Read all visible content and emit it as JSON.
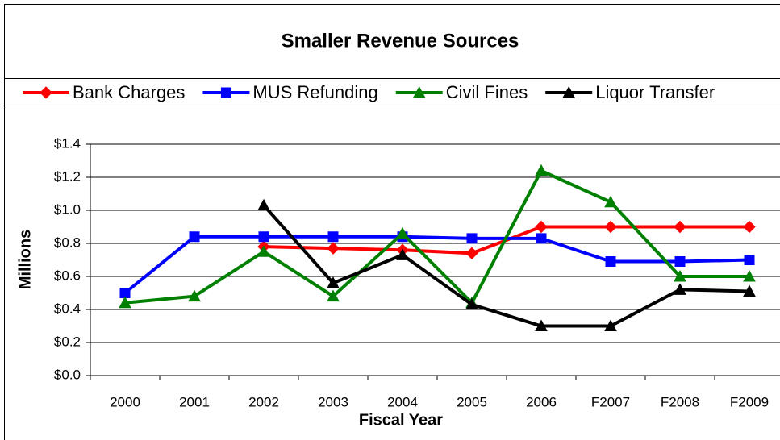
{
  "chart_data": {
    "type": "line",
    "title": "Smaller Revenue Sources",
    "x_label": "Fiscal Year",
    "y_label": "Millions",
    "categories": [
      "2000",
      "2001",
      "2002",
      "2003",
      "2004",
      "2005",
      "2006",
      "F2007",
      "F2008",
      "F2009"
    ],
    "series": [
      {
        "name": "Bank Charges",
        "color": "#ff0000",
        "marker": "diamond",
        "values": [
          null,
          null,
          0.78,
          0.77,
          0.76,
          0.74,
          0.9,
          0.9,
          0.9,
          0.9
        ]
      },
      {
        "name": "MUS Refunding",
        "color": "#0000ff",
        "marker": "square",
        "values": [
          0.5,
          0.84,
          0.84,
          0.84,
          0.84,
          0.83,
          0.83,
          0.69,
          0.69,
          0.7
        ]
      },
      {
        "name": "Civil Fines",
        "color": "#008000",
        "marker": "triangle",
        "values": [
          0.44,
          0.48,
          0.75,
          0.48,
          0.86,
          0.44,
          1.24,
          1.05,
          0.6,
          0.6
        ]
      },
      {
        "name": "Liquor Transfer",
        "color": "#000000",
        "marker": "triangle",
        "values": [
          null,
          null,
          1.03,
          0.56,
          0.73,
          0.43,
          0.3,
          0.3,
          0.52,
          0.51
        ]
      }
    ],
    "ylim": [
      0,
      1.4
    ],
    "yticks": [
      {
        "value": 0,
        "label": "$0.0"
      },
      {
        "value": 0.2,
        "label": "$0.2"
      },
      {
        "value": 0.4,
        "label": "$0.4"
      },
      {
        "value": 0.6,
        "label": "$0.6"
      },
      {
        "value": 0.8,
        "label": "$0.8"
      },
      {
        "value": 1.0,
        "label": "$1.0"
      },
      {
        "value": 1.2,
        "label": "$1.2"
      },
      {
        "value": 1.4,
        "label": "$1.4"
      }
    ],
    "grid": true
  }
}
